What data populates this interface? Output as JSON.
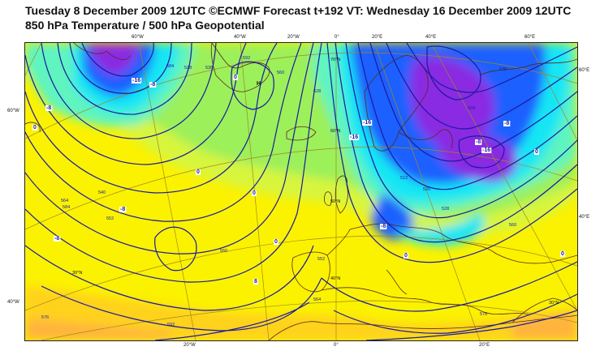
{
  "title": {
    "line1": "Tuesday 8 December 2009 12UTC ©ECMWF Forecast t+192 VT: Wednesday 16 December 2009 12UTC",
    "line2": "850 hPa Temperature / 500 hPa Geopotential"
  },
  "graticule": {
    "top": [
      "60°W",
      "40°W",
      "20°W",
      "0°",
      "20°E",
      "40°E",
      "60°E"
    ],
    "bottom": [
      "20°W",
      "0°",
      "20°E"
    ],
    "left": [
      "60°W",
      "40°W"
    ],
    "right": [
      "60°E",
      "40°E"
    ],
    "interior": [
      "70°N",
      "60°N",
      "50°N",
      "40°N",
      "30°N",
      "30°N"
    ]
  },
  "temperature_labels": [
    "-16",
    "-8",
    "0",
    "-8",
    "0",
    "0",
    "0",
    "-8",
    "-8",
    "-16",
    "-16",
    "-8",
    "-16",
    "0",
    "-8",
    "0",
    "8",
    "0",
    "0",
    "-8"
  ],
  "geopotential_labels": [
    "584",
    "528",
    "536",
    "592",
    "560",
    "504",
    "536",
    "512",
    "520",
    "528",
    "540",
    "552",
    "564",
    "576",
    "584",
    "592",
    "560",
    "528",
    "552",
    "564",
    "576",
    "560"
  ],
  "pressure_centers": [
    "H"
  ],
  "colors": {
    "violet": "#8a2be2",
    "blue": "#1e60ff",
    "cyan": "#16e6f4",
    "aquamarine": "#5ff4c0",
    "green": "#9cf05a",
    "lime": "#d8f53e",
    "yellow": "#fbf200",
    "gold": "#ffd21e",
    "orange": "#ffb43c",
    "contour": "#1a1aa0",
    "coast": "#5a2818",
    "grid": "#a08820"
  }
}
